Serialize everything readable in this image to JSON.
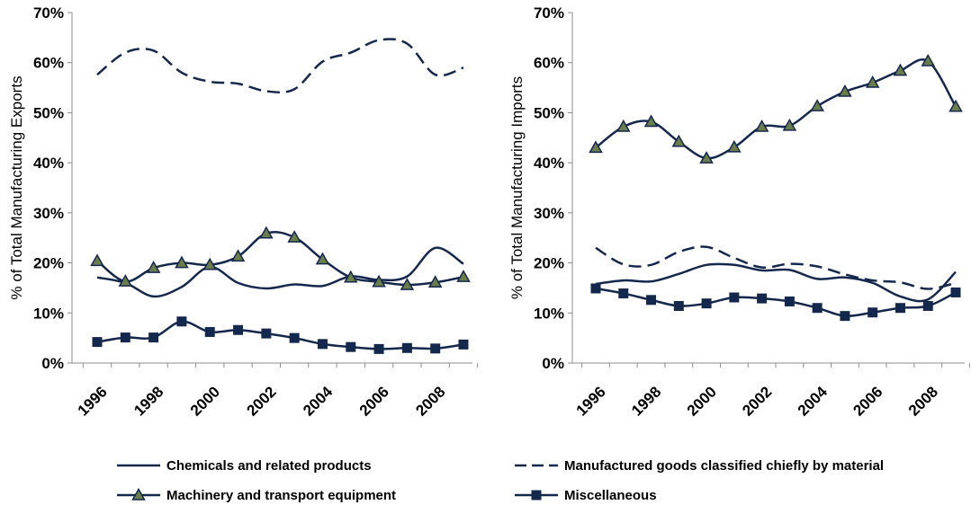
{
  "chart_data": [
    {
      "type": "line",
      "ylabel": "% of Total Manufacturing Exports",
      "ylim": [
        0,
        70
      ],
      "yticks": [
        "0%",
        "10%",
        "20%",
        "30%",
        "40%",
        "50%",
        "60%",
        "70%"
      ],
      "xticks": [
        "1996",
        "1998",
        "2000",
        "2002",
        "2004",
        "2006",
        "2008"
      ],
      "x": [
        1996,
        1997,
        1998,
        1999,
        2000,
        2001,
        2002,
        2003,
        2004,
        2005,
        2006,
        2007,
        2008,
        2009
      ],
      "series": [
        {
          "name": "Chemicals and related products",
          "style": "solid",
          "marker": "none",
          "values": [
            17.1,
            16.0,
            13.3,
            15.2,
            19.2,
            16.0,
            14.9,
            15.7,
            15.4,
            17.3,
            16.6,
            17.3,
            23.0,
            19.8
          ]
        },
        {
          "name": "Manufactured goods classified chiefly by material",
          "style": "dashed",
          "marker": "none",
          "values": [
            57.6,
            62.0,
            62.4,
            58.0,
            56.2,
            55.8,
            54.3,
            54.7,
            60.2,
            62.0,
            64.5,
            63.8,
            57.6,
            59.0
          ]
        },
        {
          "name": "Machinery and transport equipment",
          "style": "solid",
          "marker": "triangle",
          "values": [
            20.4,
            16.3,
            19.0,
            20.0,
            19.6,
            21.3,
            25.9,
            25.1,
            20.7,
            17.1,
            16.2,
            15.6,
            16.1,
            17.2
          ]
        },
        {
          "name": "Miscellaneous",
          "style": "solid",
          "marker": "square",
          "values": [
            4.2,
            5.1,
            5.1,
            8.3,
            6.2,
            6.6,
            5.9,
            5.0,
            3.8,
            3.2,
            2.8,
            3.0,
            2.9,
            3.7
          ]
        }
      ]
    },
    {
      "type": "line",
      "ylabel": "% of Total Manufacturing Imports",
      "ylim": [
        0,
        70
      ],
      "yticks": [
        "0%",
        "10%",
        "20%",
        "30%",
        "40%",
        "50%",
        "60%",
        "70%"
      ],
      "xticks": [
        "1996",
        "1998",
        "2000",
        "2002",
        "2004",
        "2006",
        "2008"
      ],
      "x": [
        1996,
        1997,
        1998,
        1999,
        2000,
        2001,
        2002,
        2003,
        2004,
        2005,
        2006,
        2007,
        2008,
        2009
      ],
      "series": [
        {
          "name": "Chemicals and related products",
          "style": "solid",
          "marker": "none",
          "values": [
            15.8,
            16.5,
            16.3,
            17.8,
            19.6,
            19.6,
            18.5,
            18.6,
            16.8,
            17.1,
            16.0,
            13.3,
            12.7,
            18.2
          ]
        },
        {
          "name": "Manufactured goods classified chiefly by material",
          "style": "dashed",
          "marker": "none",
          "values": [
            23.0,
            19.7,
            19.6,
            22.2,
            23.2,
            21.0,
            19.1,
            19.8,
            19.3,
            17.7,
            16.5,
            16.1,
            14.8,
            16.0
          ]
        },
        {
          "name": "Machinery and transport equipment",
          "style": "solid",
          "marker": "triangle",
          "values": [
            43.0,
            47.2,
            48.2,
            44.2,
            40.9,
            43.1,
            47.2,
            47.4,
            51.3,
            54.2,
            56.0,
            58.4,
            60.3,
            51.2
          ]
        },
        {
          "name": "Miscellaneous",
          "style": "solid",
          "marker": "square",
          "values": [
            14.9,
            13.9,
            12.6,
            11.4,
            11.9,
            13.1,
            12.9,
            12.3,
            11.0,
            9.4,
            10.1,
            11.0,
            11.4,
            14.1
          ]
        }
      ]
    }
  ],
  "legend": {
    "placement": "bottom",
    "entries": [
      {
        "label": "Chemicals and related products",
        "style": "solid",
        "marker": "none"
      },
      {
        "label": "Manufactured goods classified chiefly by material",
        "style": "dashed",
        "marker": "none"
      },
      {
        "label": "Machinery and transport equipment",
        "style": "solid",
        "marker": "triangle"
      },
      {
        "label": "Miscellaneous",
        "style": "solid",
        "marker": "square"
      }
    ]
  },
  "colors": {
    "line": "#14284e",
    "triangle_fill": "#6b7d4a",
    "square_fill": "#14284e"
  }
}
